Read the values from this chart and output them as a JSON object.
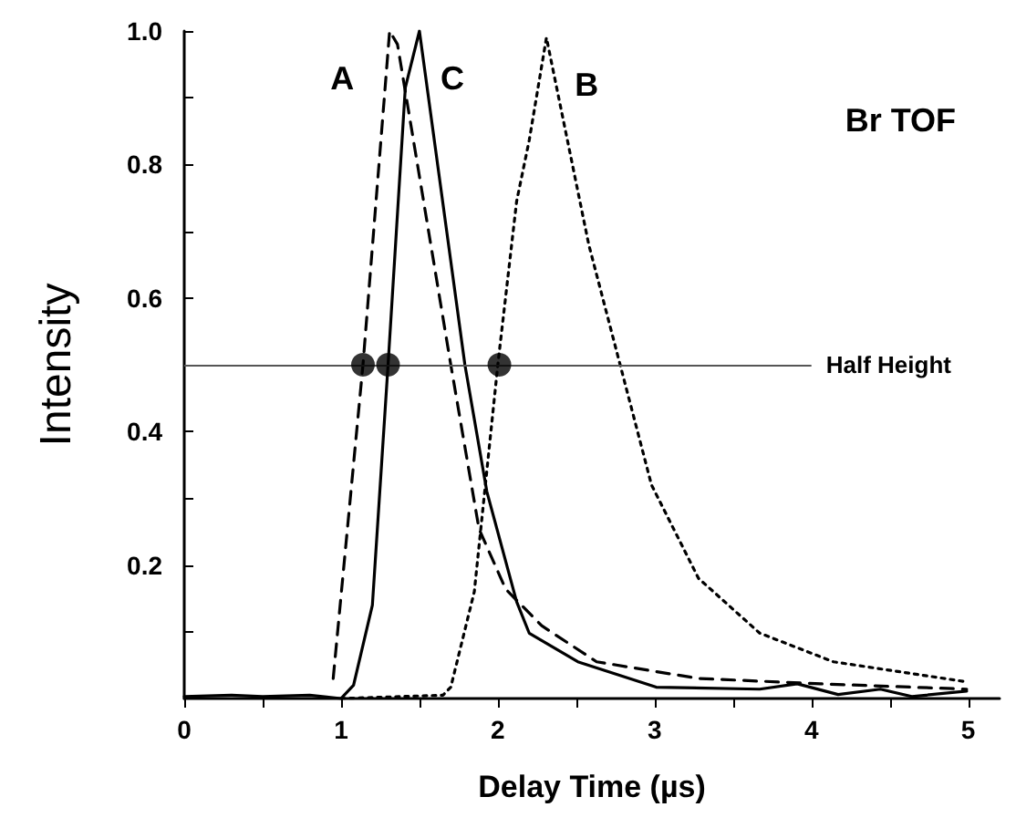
{
  "chart_data": {
    "type": "line",
    "title": "Br TOF",
    "xlabel": "Delay Time (µs)",
    "ylabel": "Intensity",
    "xlim": [
      0,
      5.2
    ],
    "ylim": [
      0,
      1
    ],
    "xticks": [
      0,
      {
        "value": 0.5,
        "label": null
      },
      1,
      {
        "value": 1.5,
        "label": null
      },
      2,
      {
        "value": 2.5,
        "label": null
      },
      3,
      {
        "value": 3.5,
        "label": null
      },
      4,
      {
        "value": 4.5,
        "label": null
      },
      5
    ],
    "yticks": [
      {
        "value": 0.1,
        "label": null
      },
      0.2,
      {
        "value": 0.3,
        "label": null
      },
      0.4,
      {
        "value": 0.5,
        "label": null
      },
      0.6,
      {
        "value": 0.7,
        "label": null
      },
      0.8,
      {
        "value": 0.9,
        "label": null
      },
      {
        "value": 1,
        "label": "1.0"
      }
    ],
    "grid": false,
    "legend": false,
    "series": [
      {
        "name": "A",
        "color": "#000000",
        "line_style": "dashed",
        "marker": "none",
        "x": [
          0.95,
          1.14,
          1.31,
          1.36,
          1.7,
          1.88,
          2.05,
          2.28,
          2.63,
          3.28,
          4.06,
          4.99
        ],
        "values": [
          0.03,
          0.5,
          1.0,
          0.98,
          0.5,
          0.254,
          0.164,
          0.109,
          0.055,
          0.03,
          0.022,
          0.014
        ]
      },
      {
        "name": "B",
        "color": "#000000",
        "line_style": "dotted",
        "marker": "none",
        "x": [
          1.0,
          1.65,
          1.7,
          1.85,
          2.0,
          2.12,
          2.2,
          2.31,
          2.58,
          2.78,
          2.98,
          3.28,
          3.67,
          4.14,
          4.99
        ],
        "values": [
          0.0,
          0.005,
          0.017,
          0.16,
          0.5,
          0.745,
          0.836,
          0.99,
          0.68,
          0.5,
          0.32,
          0.18,
          0.098,
          0.055,
          0.025
        ]
      },
      {
        "name": "C",
        "color": "#000000",
        "line_style": "solid",
        "marker": "none",
        "x": [
          0,
          0.3,
          0.5,
          0.8,
          1.0,
          1.08,
          1.2,
          1.3,
          1.41,
          1.5,
          1.79,
          1.93,
          2.12,
          2.2,
          2.51,
          3.01,
          3.67,
          3.91,
          4.17,
          4.44,
          4.64,
          4.99
        ],
        "values": [
          0.003,
          0.005,
          0.003,
          0.005,
          0.0,
          0.02,
          0.14,
          0.5,
          0.915,
          1.0,
          0.5,
          0.31,
          0.145,
          0.098,
          0.055,
          0.017,
          0.014,
          0.022,
          0.006,
          0.014,
          0.003,
          0.011
        ]
      },
      {
        "type": "scatter",
        "color": "#000000",
        "marker": "circle",
        "x": [
          1.14,
          1.3,
          2.01
        ],
        "values": [
          0.5,
          0.5,
          0.5
        ]
      }
    ],
    "ref_lines": [
      {
        "axis": "y",
        "value": 0.5,
        "label": "Half Height",
        "color": "#555555",
        "line_style": "solid"
      }
    ]
  }
}
